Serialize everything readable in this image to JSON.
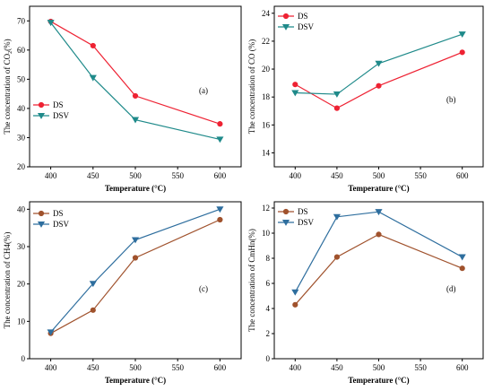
{
  "colors": {
    "ds_red": "#ee2233",
    "dsv_teal": "#1f8a8a",
    "ds_brown": "#a0522d",
    "dsv_blue": "#2e6e9e"
  },
  "chart_data": [
    {
      "id": "a",
      "type": "line",
      "panel_label": "(a)",
      "xlabel": "Temperature (°C)",
      "ylabel_parts": [
        "The concentration of CO",
        "2",
        "(%)"
      ],
      "xlim": [
        375,
        625
      ],
      "ylim": [
        20,
        75
      ],
      "xticks": [
        400,
        450,
        500,
        550,
        600
      ],
      "yticks": [
        20,
        30,
        40,
        50,
        60,
        70
      ],
      "legend_position": "center-left",
      "series": [
        {
          "name": "DS",
          "marker": "circle",
          "color": "#ee2233",
          "x": [
            400,
            450,
            500,
            600
          ],
          "y": [
            69.8,
            61.5,
            44.3,
            34.7
          ]
        },
        {
          "name": "DSV",
          "marker": "triangle-down",
          "color": "#1f8a8a",
          "x": [
            400,
            450,
            500,
            600
          ],
          "y": [
            69.4,
            50.5,
            36.1,
            29.4
          ]
        }
      ]
    },
    {
      "id": "b",
      "type": "line",
      "panel_label": "(b)",
      "xlabel": "Temperature (°C)",
      "ylabel_parts": [
        "The concentration of CO (%)"
      ],
      "xlim": [
        375,
        625
      ],
      "ylim": [
        13,
        24.5
      ],
      "xticks": [
        400,
        450,
        500,
        550,
        600
      ],
      "yticks": [
        14,
        16,
        18,
        20,
        22,
        24
      ],
      "legend_position": "top-left",
      "series": [
        {
          "name": "DS",
          "marker": "circle",
          "color": "#ee2233",
          "x": [
            400,
            450,
            500,
            600
          ],
          "y": [
            18.9,
            17.2,
            18.8,
            21.2
          ]
        },
        {
          "name": "DSV",
          "marker": "triangle-down",
          "color": "#1f8a8a",
          "x": [
            400,
            450,
            500,
            600
          ],
          "y": [
            18.3,
            18.2,
            20.4,
            22.5
          ]
        }
      ]
    },
    {
      "id": "c",
      "type": "line",
      "panel_label": "(c)",
      "xlabel": "Temperature (°C)",
      "ylabel_parts": [
        "The concentration of CH4(%)"
      ],
      "xlim": [
        375,
        625
      ],
      "ylim": [
        0,
        42
      ],
      "xticks": [
        400,
        450,
        500,
        550,
        600
      ],
      "yticks": [
        0,
        10,
        20,
        30,
        40
      ],
      "legend_position": "top-left",
      "series": [
        {
          "name": "DS",
          "marker": "circle",
          "color": "#a0522d",
          "x": [
            400,
            450,
            500,
            600
          ],
          "y": [
            6.8,
            13.0,
            27.0,
            37.2
          ]
        },
        {
          "name": "DSV",
          "marker": "triangle-down",
          "color": "#2e6e9e",
          "x": [
            400,
            450,
            500,
            600
          ],
          "y": [
            7.1,
            20.1,
            31.8,
            40.0
          ]
        }
      ]
    },
    {
      "id": "d",
      "type": "line",
      "panel_label": "(d)",
      "xlabel": "Temperature (°C)",
      "ylabel_parts": [
        "The concentration of CmHn(%)"
      ],
      "xlim": [
        375,
        625
      ],
      "ylim": [
        0,
        12.5
      ],
      "xticks": [
        400,
        450,
        500,
        550,
        600
      ],
      "yticks": [
        0,
        2,
        4,
        6,
        8,
        10,
        12
      ],
      "legend_position": "top-left",
      "series": [
        {
          "name": "DS",
          "marker": "circle",
          "color": "#a0522d",
          "x": [
            400,
            450,
            500,
            600
          ],
          "y": [
            4.3,
            8.1,
            9.9,
            7.2
          ]
        },
        {
          "name": "DSV",
          "marker": "triangle-down",
          "color": "#2e6e9e",
          "x": [
            400,
            450,
            500,
            600
          ],
          "y": [
            5.3,
            11.3,
            11.7,
            8.1
          ]
        }
      ]
    }
  ]
}
